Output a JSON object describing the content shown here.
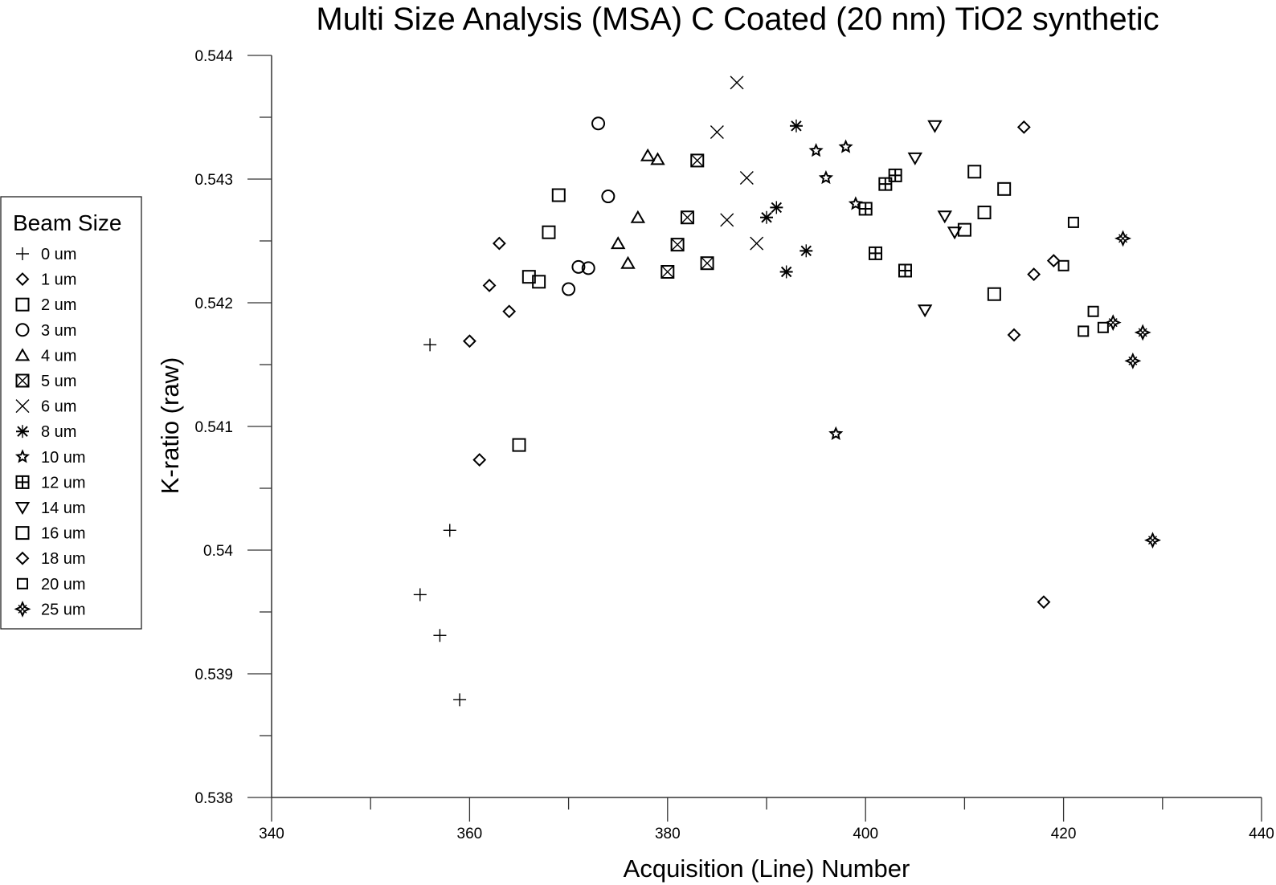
{
  "chart_data": {
    "type": "scatter",
    "title": "Multi Size Analysis (MSA) C Coated (20 nm) TiO2 synthetic",
    "xlabel": "Acquisition (Line) Number",
    "ylabel": "K-ratio (raw)",
    "xlim": [
      340,
      440
    ],
    "ylim": [
      0.538,
      0.544
    ],
    "x_ticks": [
      "340",
      "360",
      "380",
      "400",
      "420",
      "440"
    ],
    "x_tick_values": [
      340,
      360,
      380,
      400,
      420,
      440
    ],
    "x_minor_tick_values": [
      350,
      370,
      390,
      410,
      430
    ],
    "y_ticks": [
      "0.538",
      "0.539",
      "0.54",
      "0.541",
      "0.542",
      "0.543",
      "0.544"
    ],
    "y_tick_values": [
      0.538,
      0.539,
      0.54,
      0.541,
      0.542,
      0.543,
      0.544
    ],
    "y_minor_tick_values": [
      0.5385,
      0.5395,
      0.5405,
      0.5415,
      0.5425,
      0.5435
    ],
    "grid": false,
    "legend": {
      "title": "Beam Size",
      "placement": "left-outside"
    },
    "series": [
      {
        "name": "0 um",
        "marker": "plus",
        "x": [
          355,
          356,
          357,
          358,
          359
        ],
        "y": [
          0.53964,
          0.54166,
          0.53931,
          0.54016,
          0.53879
        ]
      },
      {
        "name": "1 um",
        "marker": "diamond",
        "x": [
          360,
          361,
          362,
          363,
          364
        ],
        "y": [
          0.54169,
          0.54073,
          0.54214,
          0.54248,
          0.54193
        ]
      },
      {
        "name": "2 um",
        "marker": "square",
        "x": [
          365,
          366,
          367,
          368,
          369
        ],
        "y": [
          0.54085,
          0.54221,
          0.54217,
          0.54257,
          0.54287
        ]
      },
      {
        "name": "3 um",
        "marker": "circle",
        "x": [
          370,
          371,
          372,
          373,
          374
        ],
        "y": [
          0.54211,
          0.54229,
          0.54228,
          0.54345,
          0.54286
        ]
      },
      {
        "name": "4 um",
        "marker": "triangle-up",
        "x": [
          375,
          376,
          377,
          378,
          379
        ],
        "y": [
          0.54248,
          0.54232,
          0.54269,
          0.54319,
          0.54316
        ]
      },
      {
        "name": "5 um",
        "marker": "square-x",
        "x": [
          380,
          381,
          382,
          383,
          384
        ],
        "y": [
          0.54225,
          0.54247,
          0.54269,
          0.54315,
          0.54232
        ]
      },
      {
        "name": "6 um",
        "marker": "x",
        "x": [
          385,
          386,
          387,
          388,
          389
        ],
        "y": [
          0.54338,
          0.54267,
          0.54378,
          0.54301,
          0.54248
        ]
      },
      {
        "name": "8 um",
        "marker": "asterisk",
        "x": [
          390,
          391,
          392,
          393,
          394
        ],
        "y": [
          0.54269,
          0.54277,
          0.54225,
          0.54343,
          0.54242
        ]
      },
      {
        "name": "10 um",
        "marker": "star",
        "x": [
          395,
          396,
          397,
          398,
          399
        ],
        "y": [
          0.54323,
          0.54301,
          0.54094,
          0.54326,
          0.5428
        ]
      },
      {
        "name": "12 um",
        "marker": "square-plus",
        "x": [
          400,
          401,
          402,
          403,
          404
        ],
        "y": [
          0.54276,
          0.5424,
          0.54296,
          0.54303,
          0.54226
        ]
      },
      {
        "name": "14 um",
        "marker": "triangle-down",
        "x": [
          405,
          406,
          407,
          408,
          409
        ],
        "y": [
          0.54317,
          0.54194,
          0.54343,
          0.5427,
          0.54257
        ]
      },
      {
        "name": "16 um",
        "marker": "square",
        "x": [
          410,
          411,
          412,
          413,
          414
        ],
        "y": [
          0.54259,
          0.54306,
          0.54273,
          0.54207,
          0.54292
        ]
      },
      {
        "name": "18 um",
        "marker": "diamond",
        "x": [
          415,
          416,
          417,
          418,
          419
        ],
        "y": [
          0.54174,
          0.54342,
          0.54223,
          0.53958,
          0.54234
        ]
      },
      {
        "name": "20 um",
        "marker": "square-thick",
        "x": [
          420,
          421,
          422,
          423,
          424
        ],
        "y": [
          0.5423,
          0.54265,
          0.54177,
          0.54193,
          0.5418
        ]
      },
      {
        "name": "25 um",
        "marker": "burst",
        "x": [
          425,
          426,
          427,
          428,
          429
        ],
        "y": [
          0.54184,
          0.54252,
          0.54153,
          0.54176,
          0.54008
        ]
      }
    ]
  }
}
